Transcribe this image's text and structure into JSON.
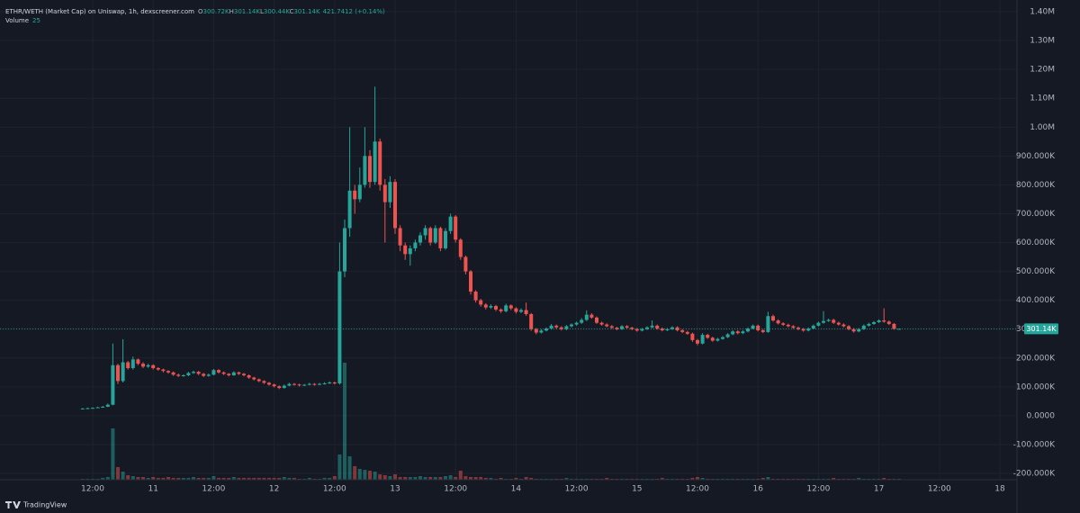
{
  "chart_data": {
    "type": "candlestick",
    "header": {
      "title": "ETHR/WETH (Market Cap) on Uniswap, 1h, dexscreener.com",
      "ohlc": [
        {
          "key": "O",
          "value": "300.72K"
        },
        {
          "key": "H",
          "value": "301.14K"
        },
        {
          "key": "L",
          "value": "300.44K"
        },
        {
          "key": "C",
          "value": "301.14K"
        }
      ],
      "change": "421.7412 (+0.14%)",
      "volume_name": "Volume",
      "volume_value": "25"
    },
    "xticks": [
      "12:00",
      "11",
      "12:00",
      "12",
      "12:00",
      "13",
      "12:00",
      "14",
      "12:00",
      "15",
      "12:00",
      "16",
      "12:00",
      "17",
      "12:00",
      "18"
    ],
    "ylim": [
      -200000,
      1400000
    ],
    "yticks": [
      {
        "value": 1400000,
        "label": "1.40M"
      },
      {
        "value": 1300000,
        "label": "1.30M"
      },
      {
        "value": 1200000,
        "label": "1.20M"
      },
      {
        "value": 1100000,
        "label": "1.10M"
      },
      {
        "value": 1000000,
        "label": "1.00M"
      },
      {
        "value": 900000,
        "label": "900.000K"
      },
      {
        "value": 800000,
        "label": "800.000K"
      },
      {
        "value": 700000,
        "label": "700.000K"
      },
      {
        "value": 600000,
        "label": "600.000K"
      },
      {
        "value": 500000,
        "label": "500.000K"
      },
      {
        "value": 400000,
        "label": "400.000K"
      },
      {
        "value": 300000,
        "label": "300.000K"
      },
      {
        "value": 200000,
        "label": "200.000K"
      },
      {
        "value": 100000,
        "label": "100.000K"
      },
      {
        "value": 0,
        "label": "0.0000"
      },
      {
        "value": -100000,
        "label": "-100.000K"
      },
      {
        "value": -200000,
        "label": "-200.000K"
      }
    ],
    "grid": true,
    "up_color": "#26a69a",
    "down_color": "#ef5350",
    "last_price": {
      "value": 301140,
      "label": "301.14K"
    },
    "candles": [
      [
        24000,
        26000,
        22000,
        25000
      ],
      [
        25000,
        28000,
        24000,
        26000
      ],
      [
        26000,
        29000,
        25000,
        27000
      ],
      [
        27000,
        31000,
        26000,
        29000
      ],
      [
        29000,
        34000,
        28000,
        31000
      ],
      [
        31000,
        42000,
        30000,
        38000
      ],
      [
        38000,
        250000,
        36000,
        175000
      ],
      [
        175000,
        180000,
        110000,
        120000
      ],
      [
        120000,
        265000,
        115000,
        185000
      ],
      [
        185000,
        190000,
        160000,
        165000
      ],
      [
        165000,
        205000,
        160000,
        195000
      ],
      [
        195000,
        198000,
        175000,
        180000
      ],
      [
        180000,
        185000,
        165000,
        170000
      ],
      [
        170000,
        180000,
        166000,
        175000
      ],
      [
        175000,
        178000,
        160000,
        165000
      ],
      [
        165000,
        168000,
        156000,
        160000
      ],
      [
        160000,
        163000,
        150000,
        155000
      ],
      [
        155000,
        158000,
        146000,
        150000
      ],
      [
        150000,
        153000,
        138000,
        142000
      ],
      [
        142000,
        146000,
        134000,
        138000
      ],
      [
        138000,
        143000,
        135000,
        140000
      ],
      [
        140000,
        152000,
        137000,
        148000
      ],
      [
        148000,
        156000,
        145000,
        152000
      ],
      [
        152000,
        155000,
        141000,
        145000
      ],
      [
        145000,
        148000,
        134000,
        138000
      ],
      [
        138000,
        146000,
        135000,
        142000
      ],
      [
        142000,
        162000,
        140000,
        158000
      ],
      [
        158000,
        161000,
        146000,
        150000
      ],
      [
        150000,
        153000,
        141000,
        145000
      ],
      [
        145000,
        148000,
        136000,
        140000
      ],
      [
        140000,
        154000,
        138000,
        150000
      ],
      [
        150000,
        153000,
        141000,
        145000
      ],
      [
        145000,
        148000,
        136000,
        140000
      ],
      [
        140000,
        143000,
        128000,
        132000
      ],
      [
        132000,
        135000,
        122000,
        126000
      ],
      [
        126000,
        129000,
        116000,
        120000
      ],
      [
        120000,
        123000,
        110000,
        114000
      ],
      [
        114000,
        117000,
        104000,
        108000
      ],
      [
        108000,
        111000,
        98000,
        102000
      ],
      [
        102000,
        105000,
        92000,
        96000
      ],
      [
        96000,
        108000,
        94000,
        104000
      ],
      [
        104000,
        114000,
        102000,
        110000
      ],
      [
        110000,
        113000,
        104000,
        108000
      ],
      [
        108000,
        111000,
        101000,
        105000
      ],
      [
        105000,
        110000,
        103000,
        107000
      ],
      [
        107000,
        114000,
        105000,
        110000
      ],
      [
        110000,
        113000,
        104000,
        108000
      ],
      [
        108000,
        114000,
        106000,
        110000
      ],
      [
        110000,
        116000,
        108000,
        112000
      ],
      [
        112000,
        119000,
        110000,
        115000
      ],
      [
        115000,
        118000,
        108000,
        112000
      ],
      [
        112000,
        600000,
        108000,
        500000
      ],
      [
        500000,
        680000,
        480000,
        650000
      ],
      [
        650000,
        1000000,
        620000,
        780000
      ],
      [
        780000,
        800000,
        700000,
        750000
      ],
      [
        750000,
        860000,
        740000,
        800000
      ],
      [
        800000,
        1000000,
        790000,
        900000
      ],
      [
        900000,
        920000,
        790000,
        810000
      ],
      [
        810000,
        1140000,
        800000,
        950000
      ],
      [
        950000,
        960000,
        780000,
        800000
      ],
      [
        800000,
        820000,
        600000,
        740000
      ],
      [
        740000,
        830000,
        720000,
        810000
      ],
      [
        810000,
        820000,
        630000,
        650000
      ],
      [
        650000,
        660000,
        570000,
        590000
      ],
      [
        590000,
        600000,
        540000,
        560000
      ],
      [
        560000,
        590000,
        520000,
        580000
      ],
      [
        580000,
        610000,
        570000,
        600000
      ],
      [
        600000,
        635000,
        590000,
        625000
      ],
      [
        625000,
        660000,
        610000,
        650000
      ],
      [
        650000,
        655000,
        590000,
        600000
      ],
      [
        600000,
        660000,
        595000,
        650000
      ],
      [
        650000,
        655000,
        570000,
        580000
      ],
      [
        580000,
        650000,
        575000,
        640000
      ],
      [
        640000,
        700000,
        630000,
        690000
      ],
      [
        690000,
        695000,
        600000,
        610000
      ],
      [
        610000,
        615000,
        540000,
        550000
      ],
      [
        550000,
        555000,
        490000,
        500000
      ],
      [
        500000,
        505000,
        420000,
        430000
      ],
      [
        430000,
        435000,
        392000,
        400000
      ],
      [
        400000,
        405000,
        378000,
        385000
      ],
      [
        385000,
        390000,
        368000,
        375000
      ],
      [
        375000,
        386000,
        370000,
        380000
      ],
      [
        380000,
        384000,
        362000,
        368000
      ],
      [
        368000,
        372000,
        356000,
        362000
      ],
      [
        362000,
        388000,
        358000,
        382000
      ],
      [
        382000,
        386000,
        366000,
        372000
      ],
      [
        372000,
        376000,
        354000,
        360000
      ],
      [
        360000,
        372000,
        356000,
        366000
      ],
      [
        366000,
        392000,
        346000,
        352000
      ],
      [
        352000,
        356000,
        294000,
        300000
      ],
      [
        300000,
        304000,
        282000,
        288000
      ],
      [
        288000,
        300000,
        285000,
        295000
      ],
      [
        295000,
        306000,
        292000,
        302000
      ],
      [
        302000,
        318000,
        298000,
        312000
      ],
      [
        312000,
        316000,
        300000,
        306000
      ],
      [
        306000,
        310000,
        295000,
        300000
      ],
      [
        300000,
        314000,
        296000,
        310000
      ],
      [
        310000,
        320000,
        306000,
        316000
      ],
      [
        316000,
        326000,
        312000,
        322000
      ],
      [
        322000,
        338000,
        318000,
        332000
      ],
      [
        332000,
        365000,
        328000,
        350000
      ],
      [
        350000,
        355000,
        336000,
        340000
      ],
      [
        340000,
        344000,
        318000,
        322000
      ],
      [
        322000,
        326000,
        312000,
        316000
      ],
      [
        316000,
        320000,
        306000,
        310000
      ],
      [
        310000,
        314000,
        300000,
        305000
      ],
      [
        305000,
        308000,
        296000,
        300000
      ],
      [
        300000,
        314000,
        297000,
        310000
      ],
      [
        310000,
        314000,
        301000,
        305000
      ],
      [
        305000,
        308000,
        296000,
        300000
      ],
      [
        300000,
        304000,
        291000,
        295000
      ],
      [
        295000,
        304000,
        292000,
        300000
      ],
      [
        300000,
        310000,
        297000,
        306000
      ],
      [
        306000,
        330000,
        303000,
        312000
      ],
      [
        312000,
        316000,
        298000,
        302000
      ],
      [
        302000,
        306000,
        292000,
        296000
      ],
      [
        296000,
        304000,
        293000,
        300000
      ],
      [
        300000,
        310000,
        297000,
        306000
      ],
      [
        306000,
        310000,
        292000,
        296000
      ],
      [
        296000,
        300000,
        286000,
        290000
      ],
      [
        290000,
        294000,
        280000,
        284000
      ],
      [
        284000,
        288000,
        256000,
        262000
      ],
      [
        262000,
        266000,
        244000,
        250000
      ],
      [
        250000,
        286000,
        247000,
        280000
      ],
      [
        280000,
        284000,
        266000,
        270000
      ],
      [
        270000,
        274000,
        256000,
        260000
      ],
      [
        260000,
        270000,
        257000,
        266000
      ],
      [
        266000,
        276000,
        263000,
        272000
      ],
      [
        272000,
        286000,
        269000,
        282000
      ],
      [
        282000,
        296000,
        279000,
        292000
      ],
      [
        292000,
        296000,
        282000,
        286000
      ],
      [
        286000,
        296000,
        283000,
        292000
      ],
      [
        292000,
        306000,
        289000,
        302000
      ],
      [
        302000,
        316000,
        299000,
        312000
      ],
      [
        312000,
        316000,
        292000,
        296000
      ],
      [
        296000,
        300000,
        286000,
        290000
      ],
      [
        290000,
        360000,
        287000,
        345000
      ],
      [
        345000,
        350000,
        326000,
        330000
      ],
      [
        330000,
        334000,
        316000,
        320000
      ],
      [
        320000,
        324000,
        311000,
        315000
      ],
      [
        315000,
        319000,
        306000,
        310000
      ],
      [
        310000,
        314000,
        301000,
        305000
      ],
      [
        305000,
        309000,
        296000,
        300000
      ],
      [
        300000,
        304000,
        291000,
        295000
      ],
      [
        295000,
        306000,
        292000,
        302000
      ],
      [
        302000,
        316000,
        299000,
        312000
      ],
      [
        312000,
        326000,
        309000,
        322000
      ],
      [
        322000,
        362000,
        319000,
        328000
      ],
      [
        328000,
        336000,
        325000,
        332000
      ],
      [
        332000,
        336000,
        318000,
        322000
      ],
      [
        322000,
        326000,
        312000,
        316000
      ],
      [
        316000,
        320000,
        306000,
        310000
      ],
      [
        310000,
        314000,
        296000,
        300000
      ],
      [
        300000,
        304000,
        288000,
        292000
      ],
      [
        292000,
        304000,
        289000,
        300000
      ],
      [
        300000,
        316000,
        297000,
        312000
      ],
      [
        312000,
        322000,
        309000,
        318000
      ],
      [
        318000,
        328000,
        315000,
        324000
      ],
      [
        324000,
        334000,
        321000,
        330000
      ],
      [
        330000,
        372000,
        322000,
        326000
      ],
      [
        326000,
        330000,
        314000,
        318000
      ],
      [
        318000,
        321000,
        298000,
        300720
      ],
      [
        300720,
        301140,
        300440,
        301140
      ]
    ],
    "volume": {
      "values": [
        1,
        1,
        1,
        1,
        2,
        3,
        57,
        14,
        9,
        5,
        4,
        3,
        3,
        2,
        3,
        2,
        2,
        3,
        2,
        2,
        2,
        2,
        3,
        2,
        2,
        2,
        4,
        2,
        2,
        2,
        3,
        2,
        2,
        2,
        2,
        2,
        2,
        2,
        2,
        2,
        3,
        2,
        2,
        1,
        1,
        2,
        1,
        1,
        2,
        2,
        4,
        28,
        130,
        26,
        15,
        12,
        11,
        10,
        9,
        6,
        5,
        4,
        6,
        3,
        3,
        3,
        3,
        4,
        3,
        3,
        3,
        3,
        4,
        5,
        3,
        10,
        4,
        3,
        3,
        3,
        2,
        2,
        1,
        2,
        1,
        1,
        2,
        1,
        3,
        2,
        1,
        1,
        1,
        1,
        1,
        1,
        2,
        1,
        1,
        1,
        1,
        1,
        1,
        1,
        2,
        1,
        1,
        1,
        1,
        1,
        1,
        1,
        1,
        1,
        1,
        2,
        1,
        1,
        1,
        1,
        1,
        2,
        3,
        2,
        1,
        1,
        1,
        1,
        1,
        1,
        1,
        1,
        1,
        1,
        1,
        2,
        3,
        1,
        1,
        1,
        1,
        1,
        1,
        1,
        1,
        1,
        1,
        1,
        1,
        2,
        1,
        1,
        1,
        1,
        2,
        1,
        1,
        1,
        1,
        2,
        1,
        1,
        1
      ]
    },
    "brand": "TradingView"
  }
}
